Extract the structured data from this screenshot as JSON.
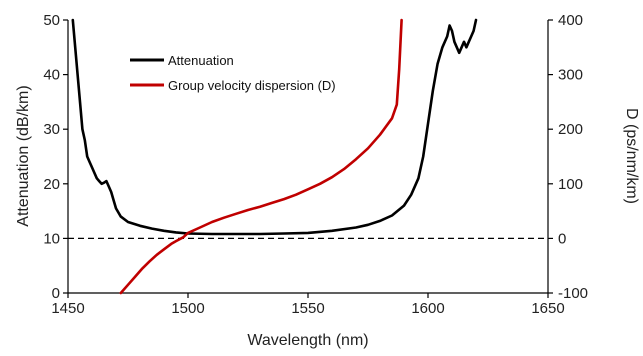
{
  "chart_data": {
    "type": "line",
    "xlabel": "Wavelength (nm)",
    "ylabel_left": "Attenuation (dB/km)",
    "ylabel_right": "D (ps/nm/km)",
    "xlim": [
      1450,
      1650
    ],
    "ylim_left": [
      0,
      50
    ],
    "ylim_right": [
      -100,
      400
    ],
    "x_ticks": [
      1450,
      1500,
      1550,
      1600,
      1650
    ],
    "x_tick_labels": [
      "1450",
      "1500",
      "1550",
      "1600",
      "1650"
    ],
    "y_left_ticks": [
      0,
      10,
      20,
      30,
      40,
      50
    ],
    "y_left_tick_labels": [
      "0",
      "10",
      "20",
      "30",
      "40",
      "50"
    ],
    "y_right_ticks": [
      -100,
      0,
      100,
      200,
      300,
      400
    ],
    "y_right_tick_labels": [
      "-100",
      "0",
      "100",
      "200",
      "300",
      "400"
    ],
    "grid": false,
    "legend_position": "top-left",
    "reference_line": {
      "axis": "left",
      "y": 10,
      "style": "dashed"
    },
    "series": [
      {
        "name": "Attenuation",
        "axis": "left",
        "color": "#000000",
        "x": [
          1452,
          1453,
          1454,
          1455,
          1456,
          1457,
          1458,
          1459,
          1460,
          1461,
          1462,
          1463,
          1464,
          1465,
          1466,
          1467,
          1468,
          1469,
          1470,
          1472,
          1475,
          1480,
          1485,
          1490,
          1495,
          1500,
          1510,
          1520,
          1530,
          1540,
          1550,
          1560,
          1570,
          1575,
          1580,
          1585,
          1590,
          1593,
          1596,
          1598,
          1600,
          1602,
          1604,
          1606,
          1608,
          1609,
          1610,
          1611,
          1612,
          1613,
          1614,
          1615,
          1616,
          1617,
          1618,
          1619,
          1620
        ],
        "values": [
          50,
          45,
          40,
          35,
          30,
          28,
          25,
          24,
          23,
          22,
          21,
          20.5,
          20,
          20.2,
          20.5,
          19.5,
          18.5,
          17,
          15.5,
          14,
          13,
          12.3,
          11.8,
          11.4,
          11.1,
          10.9,
          10.8,
          10.8,
          10.8,
          10.9,
          11,
          11.4,
          12,
          12.5,
          13.2,
          14.2,
          16,
          18,
          21,
          25,
          31,
          37,
          42,
          45,
          47,
          49,
          48,
          46,
          45,
          44,
          45,
          46,
          45,
          46,
          47,
          48,
          50
        ]
      },
      {
        "name": "Group velocity dispersion (D)",
        "axis": "right",
        "color": "#c00000",
        "x": [
          1472,
          1475,
          1478,
          1481,
          1484,
          1487,
          1490,
          1493,
          1495,
          1498,
          1500,
          1505,
          1510,
          1515,
          1520,
          1525,
          1530,
          1535,
          1540,
          1545,
          1550,
          1555,
          1560,
          1565,
          1570,
          1575,
          1580,
          1585,
          1587,
          1588,
          1589
        ],
        "values": [
          -100,
          -85,
          -70,
          -55,
          -42,
          -30,
          -20,
          -10,
          -5,
          2,
          10,
          20,
          30,
          38,
          45,
          52,
          58,
          65,
          72,
          80,
          90,
          100,
          112,
          127,
          145,
          165,
          190,
          220,
          245,
          310,
          400
        ]
      }
    ]
  }
}
